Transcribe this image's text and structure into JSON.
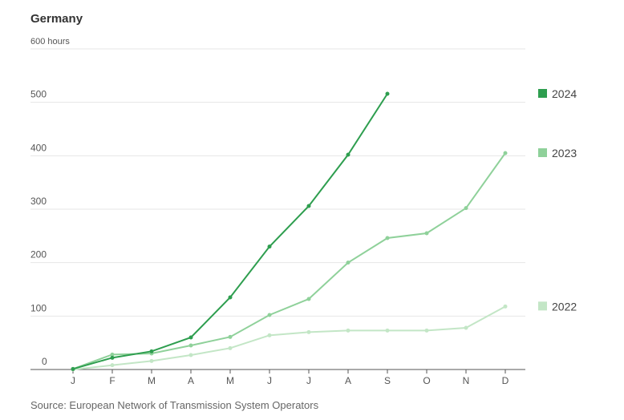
{
  "chart_data": {
    "type": "line",
    "title": "Germany",
    "source": "Source: European Network of Transmission System Operators",
    "categories": [
      "J",
      "F",
      "M",
      "A",
      "M",
      "J",
      "J",
      "A",
      "S",
      "O",
      "N",
      "D"
    ],
    "series": [
      {
        "name": "2024",
        "color": "#2e9e4f",
        "values": [
          1,
          22,
          34,
          60,
          135,
          230,
          306,
          402,
          516,
          null,
          null,
          null
        ]
      },
      {
        "name": "2023",
        "color": "#8fd19a",
        "values": [
          1,
          28,
          30,
          45,
          61,
          102,
          132,
          200,
          246,
          255,
          302,
          405
        ]
      },
      {
        "name": "2022",
        "color": "#c3e6c6",
        "values": [
          0,
          8,
          16,
          27,
          40,
          64,
          70,
          73,
          73,
          73,
          78,
          118
        ]
      }
    ],
    "ylim": [
      0,
      600
    ],
    "yticks": [
      0,
      100,
      200,
      300,
      400,
      500,
      {
        "value": 600,
        "label": "600 hours"
      }
    ],
    "grid": true
  }
}
